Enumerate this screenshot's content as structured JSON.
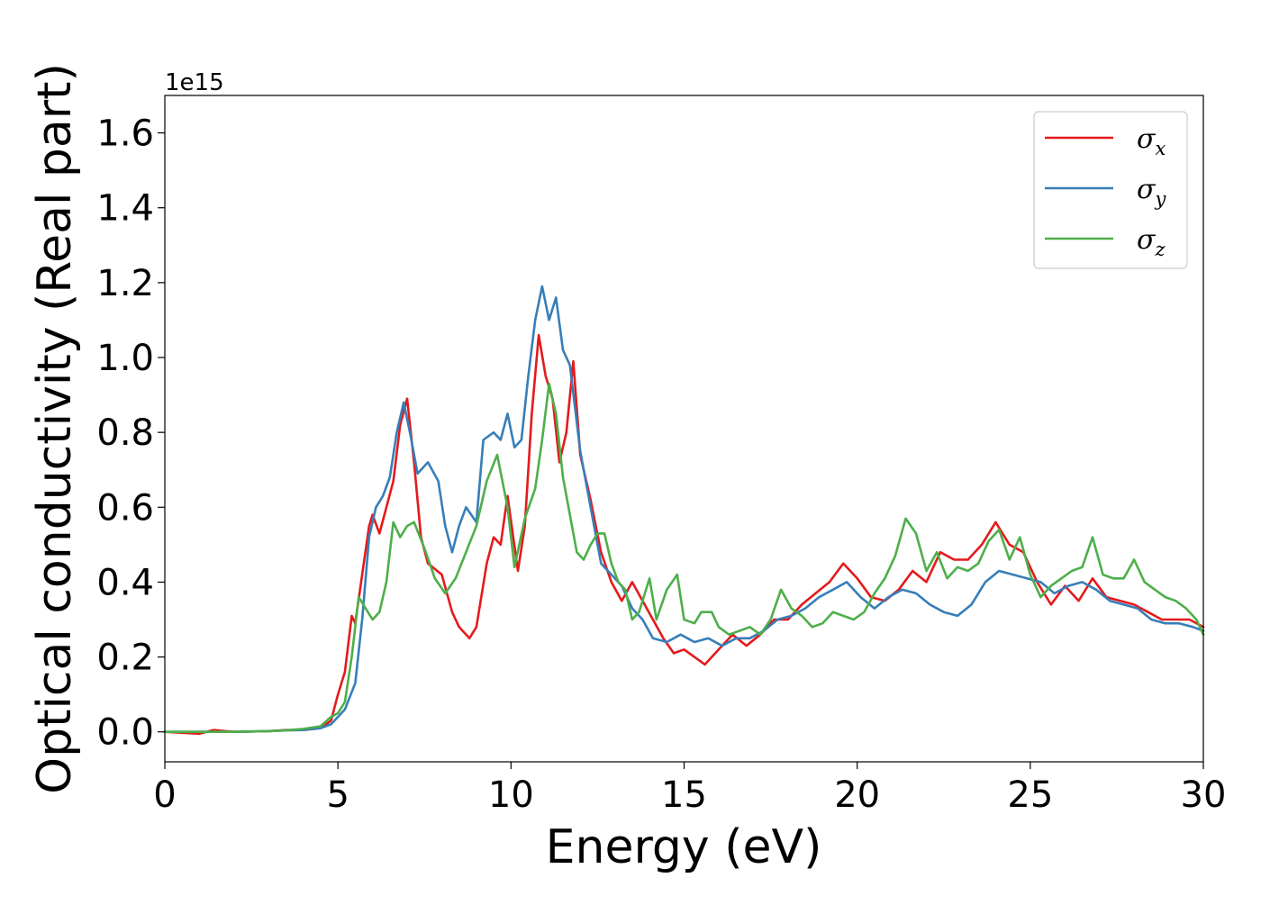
{
  "chart_data": {
    "type": "line",
    "title": "",
    "xlabel": "Energy (eV)",
    "ylabel": "Optical conductivity (Real part)",
    "y_offset_text": "1e15",
    "xlim": [
      0,
      30
    ],
    "ylim": [
      -0.08,
      1.7
    ],
    "x_ticks": [
      0,
      5,
      10,
      15,
      20,
      25,
      30
    ],
    "x_tick_labels": [
      "0",
      "5",
      "10",
      "15",
      "20",
      "25",
      "30"
    ],
    "y_ticks": [
      0.0,
      0.2,
      0.4,
      0.6,
      0.8,
      1.0,
      1.2,
      1.4,
      1.6
    ],
    "y_tick_labels": [
      "0.0",
      "0.2",
      "0.4",
      "0.6",
      "0.8",
      "1.0",
      "1.2",
      "1.4",
      "1.6"
    ],
    "grid": false,
    "legend_position": "top-right",
    "series": [
      {
        "name": "σx",
        "name_base": "σ",
        "name_sub": "x",
        "color": "#e41a1c",
        "points": [
          [
            0,
            0
          ],
          [
            1,
            -0.005
          ],
          [
            1.4,
            0.005
          ],
          [
            2,
            0
          ],
          [
            3,
            0.002
          ],
          [
            3.5,
            0.005
          ],
          [
            4,
            0.005
          ],
          [
            4.5,
            0.01
          ],
          [
            4.8,
            0.03
          ],
          [
            5,
            0.1
          ],
          [
            5.2,
            0.16
          ],
          [
            5.4,
            0.31
          ],
          [
            5.5,
            0.29
          ],
          [
            5.7,
            0.42
          ],
          [
            5.9,
            0.55
          ],
          [
            6.0,
            0.58
          ],
          [
            6.2,
            0.53
          ],
          [
            6.4,
            0.6
          ],
          [
            6.6,
            0.67
          ],
          [
            6.8,
            0.82
          ],
          [
            7.0,
            0.89
          ],
          [
            7.2,
            0.72
          ],
          [
            7.4,
            0.52
          ],
          [
            7.6,
            0.45
          ],
          [
            8.0,
            0.42
          ],
          [
            8.3,
            0.32
          ],
          [
            8.5,
            0.28
          ],
          [
            8.8,
            0.25
          ],
          [
            9.0,
            0.28
          ],
          [
            9.3,
            0.45
          ],
          [
            9.5,
            0.52
          ],
          [
            9.7,
            0.5
          ],
          [
            9.9,
            0.63
          ],
          [
            10.2,
            0.43
          ],
          [
            10.4,
            0.55
          ],
          [
            10.6,
            0.85
          ],
          [
            10.8,
            1.06
          ],
          [
            11.0,
            0.95
          ],
          [
            11.2,
            0.89
          ],
          [
            11.4,
            0.72
          ],
          [
            11.6,
            0.8
          ],
          [
            11.8,
            0.99
          ],
          [
            12.0,
            0.74
          ],
          [
            12.3,
            0.62
          ],
          [
            12.6,
            0.48
          ],
          [
            12.9,
            0.4
          ],
          [
            13.2,
            0.35
          ],
          [
            13.5,
            0.4
          ],
          [
            13.8,
            0.35
          ],
          [
            14.1,
            0.3
          ],
          [
            14.4,
            0.25
          ],
          [
            14.7,
            0.21
          ],
          [
            15.0,
            0.22
          ],
          [
            15.3,
            0.2
          ],
          [
            15.6,
            0.18
          ],
          [
            16.0,
            0.22
          ],
          [
            16.4,
            0.26
          ],
          [
            16.8,
            0.23
          ],
          [
            17.2,
            0.26
          ],
          [
            17.6,
            0.3
          ],
          [
            18.0,
            0.3
          ],
          [
            18.4,
            0.34
          ],
          [
            18.8,
            0.37
          ],
          [
            19.2,
            0.4
          ],
          [
            19.6,
            0.45
          ],
          [
            20.0,
            0.41
          ],
          [
            20.4,
            0.36
          ],
          [
            20.8,
            0.35
          ],
          [
            21.2,
            0.38
          ],
          [
            21.6,
            0.43
          ],
          [
            22.0,
            0.4
          ],
          [
            22.4,
            0.48
          ],
          [
            22.8,
            0.46
          ],
          [
            23.2,
            0.46
          ],
          [
            23.6,
            0.5
          ],
          [
            24.0,
            0.56
          ],
          [
            24.4,
            0.5
          ],
          [
            24.8,
            0.48
          ],
          [
            25.2,
            0.4
          ],
          [
            25.6,
            0.34
          ],
          [
            26.0,
            0.39
          ],
          [
            26.4,
            0.35
          ],
          [
            26.8,
            0.41
          ],
          [
            27.2,
            0.36
          ],
          [
            27.6,
            0.35
          ],
          [
            28.0,
            0.34
          ],
          [
            28.4,
            0.32
          ],
          [
            28.8,
            0.3
          ],
          [
            29.2,
            0.3
          ],
          [
            29.6,
            0.3
          ],
          [
            30.0,
            0.28
          ]
        ]
      },
      {
        "name": "σy",
        "name_base": "σ",
        "name_sub": "y",
        "color": "#377eb8",
        "points": [
          [
            0,
            0
          ],
          [
            1,
            0
          ],
          [
            2,
            0
          ],
          [
            3,
            0.002
          ],
          [
            3.5,
            0.004
          ],
          [
            4,
            0.005
          ],
          [
            4.5,
            0.01
          ],
          [
            4.8,
            0.02
          ],
          [
            5.0,
            0.04
          ],
          [
            5.2,
            0.06
          ],
          [
            5.5,
            0.13
          ],
          [
            5.7,
            0.3
          ],
          [
            5.9,
            0.52
          ],
          [
            6.1,
            0.6
          ],
          [
            6.3,
            0.63
          ],
          [
            6.5,
            0.68
          ],
          [
            6.7,
            0.8
          ],
          [
            6.9,
            0.88
          ],
          [
            7.1,
            0.79
          ],
          [
            7.3,
            0.69
          ],
          [
            7.6,
            0.72
          ],
          [
            7.9,
            0.67
          ],
          [
            8.1,
            0.55
          ],
          [
            8.3,
            0.48
          ],
          [
            8.5,
            0.55
          ],
          [
            8.7,
            0.6
          ],
          [
            9.0,
            0.56
          ],
          [
            9.2,
            0.78
          ],
          [
            9.5,
            0.8
          ],
          [
            9.7,
            0.78
          ],
          [
            9.9,
            0.85
          ],
          [
            10.1,
            0.76
          ],
          [
            10.3,
            0.78
          ],
          [
            10.5,
            0.95
          ],
          [
            10.7,
            1.1
          ],
          [
            10.9,
            1.19
          ],
          [
            11.1,
            1.1
          ],
          [
            11.3,
            1.16
          ],
          [
            11.5,
            1.02
          ],
          [
            11.7,
            0.98
          ],
          [
            12.0,
            0.75
          ],
          [
            12.3,
            0.6
          ],
          [
            12.6,
            0.45
          ],
          [
            12.9,
            0.42
          ],
          [
            13.2,
            0.39
          ],
          [
            13.5,
            0.33
          ],
          [
            13.8,
            0.3
          ],
          [
            14.1,
            0.25
          ],
          [
            14.5,
            0.24
          ],
          [
            14.9,
            0.26
          ],
          [
            15.3,
            0.24
          ],
          [
            15.7,
            0.25
          ],
          [
            16.1,
            0.23
          ],
          [
            16.5,
            0.25
          ],
          [
            16.9,
            0.25
          ],
          [
            17.3,
            0.27
          ],
          [
            17.7,
            0.3
          ],
          [
            18.1,
            0.31
          ],
          [
            18.5,
            0.33
          ],
          [
            18.9,
            0.36
          ],
          [
            19.3,
            0.38
          ],
          [
            19.7,
            0.4
          ],
          [
            20.1,
            0.36
          ],
          [
            20.5,
            0.33
          ],
          [
            20.9,
            0.36
          ],
          [
            21.3,
            0.38
          ],
          [
            21.7,
            0.37
          ],
          [
            22.1,
            0.34
          ],
          [
            22.5,
            0.32
          ],
          [
            22.9,
            0.31
          ],
          [
            23.3,
            0.34
          ],
          [
            23.7,
            0.4
          ],
          [
            24.1,
            0.43
          ],
          [
            24.5,
            0.42
          ],
          [
            24.9,
            0.41
          ],
          [
            25.3,
            0.4
          ],
          [
            25.7,
            0.37
          ],
          [
            26.1,
            0.39
          ],
          [
            26.5,
            0.4
          ],
          [
            26.9,
            0.38
          ],
          [
            27.3,
            0.35
          ],
          [
            27.7,
            0.34
          ],
          [
            28.1,
            0.33
          ],
          [
            28.5,
            0.3
          ],
          [
            28.9,
            0.29
          ],
          [
            29.3,
            0.29
          ],
          [
            29.7,
            0.28
          ],
          [
            30.0,
            0.27
          ]
        ]
      },
      {
        "name": "σz",
        "name_base": "σ",
        "name_sub": "z",
        "color": "#4daf4a",
        "points": [
          [
            0,
            0
          ],
          [
            1,
            0
          ],
          [
            2,
            0
          ],
          [
            3,
            0.002
          ],
          [
            3.5,
            0.004
          ],
          [
            4,
            0.008
          ],
          [
            4.5,
            0.015
          ],
          [
            4.8,
            0.04
          ],
          [
            5.0,
            0.05
          ],
          [
            5.2,
            0.08
          ],
          [
            5.4,
            0.2
          ],
          [
            5.6,
            0.36
          ],
          [
            5.8,
            0.33
          ],
          [
            6.0,
            0.3
          ],
          [
            6.2,
            0.32
          ],
          [
            6.4,
            0.4
          ],
          [
            6.6,
            0.56
          ],
          [
            6.8,
            0.52
          ],
          [
            7.0,
            0.55
          ],
          [
            7.2,
            0.56
          ],
          [
            7.5,
            0.49
          ],
          [
            7.8,
            0.41
          ],
          [
            8.1,
            0.37
          ],
          [
            8.4,
            0.41
          ],
          [
            8.7,
            0.48
          ],
          [
            9.0,
            0.55
          ],
          [
            9.3,
            0.67
          ],
          [
            9.6,
            0.74
          ],
          [
            9.9,
            0.6
          ],
          [
            10.1,
            0.44
          ],
          [
            10.4,
            0.57
          ],
          [
            10.7,
            0.65
          ],
          [
            10.9,
            0.78
          ],
          [
            11.1,
            0.93
          ],
          [
            11.3,
            0.85
          ],
          [
            11.5,
            0.68
          ],
          [
            11.7,
            0.58
          ],
          [
            11.9,
            0.48
          ],
          [
            12.1,
            0.46
          ],
          [
            12.3,
            0.5
          ],
          [
            12.5,
            0.53
          ],
          [
            12.7,
            0.53
          ],
          [
            12.9,
            0.45
          ],
          [
            13.1,
            0.4
          ],
          [
            13.3,
            0.38
          ],
          [
            13.5,
            0.3
          ],
          [
            13.7,
            0.32
          ],
          [
            14.0,
            0.41
          ],
          [
            14.2,
            0.3
          ],
          [
            14.5,
            0.38
          ],
          [
            14.8,
            0.42
          ],
          [
            15.0,
            0.3
          ],
          [
            15.3,
            0.29
          ],
          [
            15.5,
            0.32
          ],
          [
            15.8,
            0.32
          ],
          [
            16.0,
            0.28
          ],
          [
            16.3,
            0.26
          ],
          [
            16.6,
            0.27
          ],
          [
            16.9,
            0.28
          ],
          [
            17.2,
            0.26
          ],
          [
            17.5,
            0.3
          ],
          [
            17.8,
            0.38
          ],
          [
            18.1,
            0.33
          ],
          [
            18.4,
            0.31
          ],
          [
            18.7,
            0.28
          ],
          [
            19.0,
            0.29
          ],
          [
            19.3,
            0.32
          ],
          [
            19.6,
            0.31
          ],
          [
            19.9,
            0.3
          ],
          [
            20.2,
            0.32
          ],
          [
            20.5,
            0.37
          ],
          [
            20.8,
            0.41
          ],
          [
            21.1,
            0.47
          ],
          [
            21.4,
            0.57
          ],
          [
            21.7,
            0.53
          ],
          [
            22.0,
            0.43
          ],
          [
            22.3,
            0.48
          ],
          [
            22.6,
            0.41
          ],
          [
            22.9,
            0.44
          ],
          [
            23.2,
            0.43
          ],
          [
            23.5,
            0.45
          ],
          [
            23.8,
            0.51
          ],
          [
            24.1,
            0.54
          ],
          [
            24.4,
            0.46
          ],
          [
            24.7,
            0.52
          ],
          [
            25.0,
            0.42
          ],
          [
            25.3,
            0.36
          ],
          [
            25.6,
            0.39
          ],
          [
            25.9,
            0.41
          ],
          [
            26.2,
            0.43
          ],
          [
            26.5,
            0.44
          ],
          [
            26.8,
            0.52
          ],
          [
            27.1,
            0.42
          ],
          [
            27.4,
            0.41
          ],
          [
            27.7,
            0.41
          ],
          [
            28.0,
            0.46
          ],
          [
            28.3,
            0.4
          ],
          [
            28.6,
            0.38
          ],
          [
            28.9,
            0.36
          ],
          [
            29.2,
            0.35
          ],
          [
            29.5,
            0.33
          ],
          [
            29.8,
            0.3
          ],
          [
            30.0,
            0.26
          ]
        ]
      }
    ]
  }
}
